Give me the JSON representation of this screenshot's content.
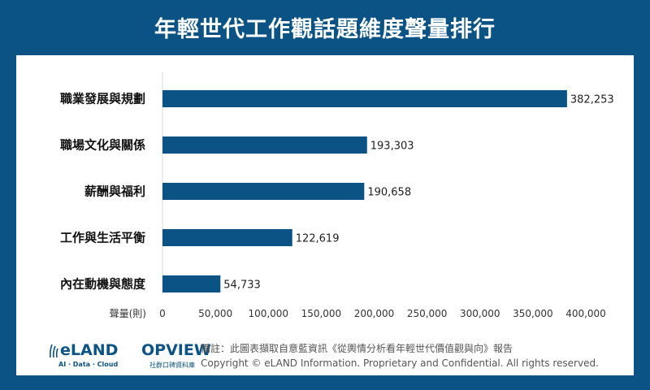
{
  "title": "年輕世代工作觀話題維度聲量排行",
  "chart_data": {
    "type": "bar",
    "orientation": "horizontal",
    "categories": [
      "職業發展與規劃",
      "職場文化與關係",
      "薪酬與福利",
      "工作與生活平衡",
      "內在動機與態度"
    ],
    "values": [
      382253,
      193303,
      190658,
      122619,
      54733
    ],
    "value_labels": [
      "382,253",
      "193,303",
      "190,658",
      "122,619",
      "54,733"
    ],
    "xlabel": "聲量(則)",
    "xlim": [
      0,
      400000
    ],
    "xticks": [
      0,
      50000,
      100000,
      150000,
      200000,
      250000,
      300000,
      350000,
      400000
    ],
    "xtick_labels": [
      "0",
      "50,000",
      "100,000",
      "150,000",
      "200,000",
      "250,000",
      "300,000",
      "350,000",
      "400,000"
    ],
    "grid": false,
    "bar_color": "#0b5384"
  },
  "logos": {
    "eland_name": "eLAND",
    "eland_tagline": "AI · Data · Cloud",
    "opview_name": "OPVIEW",
    "opview_tagline": "社群口碑資料庫"
  },
  "footer": {
    "note": "備註：此圖表擷取自意藍資訊《從輿情分析看年輕世代價值觀與向》報告",
    "copyright": "Copyright © eLAND Information. Proprietary and Confidential. All rights reserved."
  },
  "colors": {
    "background": "#0b5384",
    "panel": "#ffffff",
    "bar": "#0b5384"
  }
}
